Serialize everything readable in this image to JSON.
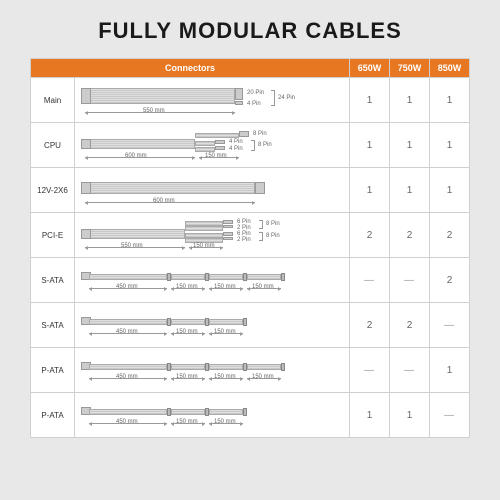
{
  "title": "FULLY MODULAR CABLES",
  "colors": {
    "page_bg": "#e8e8e8",
    "table_bg": "#ffffff",
    "header_bg": "#e87722",
    "header_text": "#ffffff",
    "border": "#d0d0d0",
    "cable": "#c9c9c9",
    "connector": "#cccccc",
    "text": "#555555"
  },
  "header": {
    "connectors_label": "Connectors",
    "wattages": [
      "650W",
      "750W",
      "850W"
    ]
  },
  "rows": [
    {
      "name": "Main",
      "diagram": {
        "kind": "main",
        "length_mm": "550 mm",
        "out_top": "20 Pin",
        "out_bottom": "4 Pin",
        "combined": "24 Pin"
      },
      "counts": [
        "1",
        "1",
        "1"
      ]
    },
    {
      "name": "CPU",
      "diagram": {
        "kind": "split2",
        "main_mm": "600 mm",
        "tail_mm": "150 mm",
        "top": "8 Pin",
        "mid1": "4 Pin",
        "mid2": "4 Pin",
        "brace_label": "8 Pin"
      },
      "counts": [
        "1",
        "1",
        "1"
      ]
    },
    {
      "name": "12V-2X6",
      "diagram": {
        "kind": "single",
        "length_mm": "600 mm"
      },
      "counts": [
        "1",
        "1",
        "1"
      ]
    },
    {
      "name": "PCI-E",
      "diagram": {
        "kind": "pcie",
        "main_mm": "550 mm",
        "tail_mm": "150 mm",
        "pair1a": "6 Pin",
        "pair1b": "2 Pin",
        "pair2a": "6 Pin",
        "pair2b": "2 Pin",
        "brace1": "8 Pin",
        "brace2": "8 Pin"
      },
      "counts": [
        "2",
        "2",
        "2"
      ]
    },
    {
      "name": "S-ATA",
      "diagram": {
        "kind": "chain",
        "segs": [
          "450 mm",
          "150 mm",
          "150 mm",
          "150 mm"
        ]
      },
      "counts": [
        "—",
        "—",
        "2"
      ]
    },
    {
      "name": "S-ATA",
      "diagram": {
        "kind": "chain",
        "segs": [
          "450 mm",
          "150 mm",
          "150 mm"
        ]
      },
      "counts": [
        "2",
        "2",
        "—"
      ]
    },
    {
      "name": "P-ATA",
      "diagram": {
        "kind": "chain",
        "segs": [
          "450 mm",
          "150 mm",
          "150 mm",
          "150 mm"
        ]
      },
      "counts": [
        "—",
        "—",
        "1"
      ]
    },
    {
      "name": "P-ATA",
      "diagram": {
        "kind": "chain",
        "segs": [
          "450 mm",
          "150 mm",
          "150 mm"
        ]
      },
      "counts": [
        "1",
        "1",
        "—"
      ]
    }
  ]
}
